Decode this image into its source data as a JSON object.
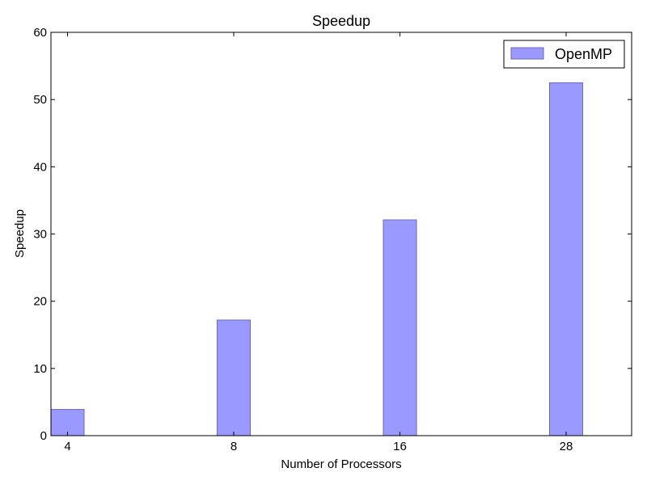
{
  "chart_data": {
    "type": "bar",
    "title": "Speedup",
    "xlabel": "Number of Processors",
    "ylabel": "Speedup",
    "categories": [
      "4",
      "8",
      "16",
      "28"
    ],
    "series": [
      {
        "name": "OpenMP",
        "values": [
          3.9,
          17.2,
          32.1,
          52.5
        ],
        "color": "#9999ff",
        "edge_color": "#6b6bb3"
      }
    ],
    "ylim": [
      0,
      60
    ],
    "yticks": [
      0,
      10,
      20,
      30,
      40,
      50,
      60
    ],
    "ytick_labels": [
      "0",
      "10",
      "20",
      "30",
      "40",
      "50",
      "60"
    ],
    "grid": false,
    "legend": "top-right"
  }
}
